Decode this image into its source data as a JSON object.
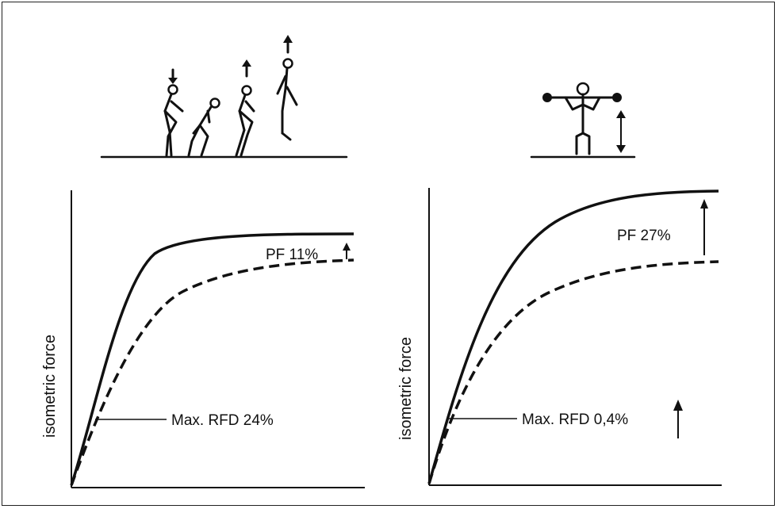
{
  "panels": [
    {
      "id": "left",
      "y_axis_label": "isometric force",
      "pf_label": "PF 11%",
      "rfd_label": "Max. RFD 24%",
      "pictogram": "jump-sequence-figures"
    },
    {
      "id": "right",
      "y_axis_label": "isometric force",
      "pf_label": "PF 27%",
      "rfd_label": "Max. RFD 0,4%",
      "pictogram": "barbell-squat-figure"
    }
  ],
  "colors": {
    "ink": "#111111",
    "background": "#ffffff"
  }
}
